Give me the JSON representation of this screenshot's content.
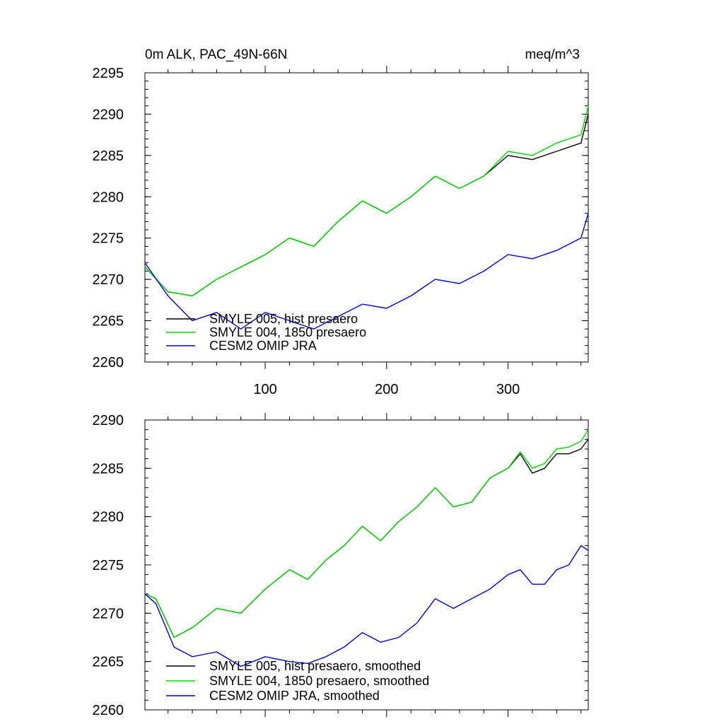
{
  "figure": {
    "title_left": "0m ALK, PAC_49N-66N",
    "title_right": "meq/m^3"
  },
  "chart_data": [
    {
      "type": "line",
      "title": "0m ALK, PAC_49N-66N",
      "units": "meq/m^3",
      "xlim": [
        1,
        366
      ],
      "ylim": [
        2260,
        2295
      ],
      "x_ticks": [
        100,
        200,
        300
      ],
      "y_ticks": [
        2260,
        2265,
        2270,
        2275,
        2280,
        2285,
        2290,
        2295
      ],
      "grid": false,
      "legend_position": "lower-left",
      "series": [
        {
          "name": "SMYLE 005, hist presaero",
          "color": "#000000",
          "x": [
            1,
            20,
            40,
            60,
            80,
            100,
            120,
            140,
            160,
            180,
            200,
            220,
            240,
            260,
            280,
            300,
            320,
            340,
            360,
            366
          ],
          "values": [
            2271.5,
            2268.5,
            2268.0,
            2270.0,
            2271.5,
            2273.0,
            2275.0,
            2274.0,
            2277.0,
            2279.5,
            2278.0,
            2280.0,
            2282.5,
            2281.0,
            2282.5,
            2285.0,
            2284.5,
            2285.5,
            2286.5,
            2290.0
          ]
        },
        {
          "name": "SMYLE 004, 1850 presaero",
          "color": "#00dd00",
          "x": [
            1,
            20,
            40,
            60,
            80,
            100,
            120,
            140,
            160,
            180,
            200,
            220,
            240,
            260,
            280,
            300,
            320,
            340,
            360,
            366
          ],
          "values": [
            2271.5,
            2268.5,
            2268.0,
            2270.0,
            2271.5,
            2273.0,
            2275.0,
            2274.0,
            2277.0,
            2279.5,
            2278.0,
            2280.0,
            2282.5,
            2281.0,
            2282.5,
            2285.5,
            2285.0,
            2286.5,
            2287.5,
            2291.0
          ]
        },
        {
          "name": "CESM2 OMIP JRA",
          "color": "#0000dd",
          "x": [
            1,
            20,
            40,
            60,
            80,
            100,
            120,
            140,
            160,
            180,
            200,
            220,
            240,
            260,
            280,
            300,
            320,
            340,
            360,
            366
          ],
          "values": [
            2272.0,
            2268.0,
            2265.0,
            2266.0,
            2264.0,
            2266.0,
            2265.0,
            2264.0,
            2265.5,
            2267.0,
            2266.5,
            2268.0,
            2270.0,
            2269.5,
            2271.0,
            2273.0,
            2272.5,
            2273.5,
            2275.0,
            2278.0
          ]
        }
      ]
    },
    {
      "type": "line",
      "xlim": [
        1,
        366
      ],
      "ylim": [
        2260,
        2290
      ],
      "x_ticks": [
        100,
        200,
        300
      ],
      "y_ticks": [
        2260,
        2265,
        2270,
        2275,
        2280,
        2285,
        2290
      ],
      "grid": false,
      "legend_position": "lower-left",
      "series": [
        {
          "name": "SMYLE 005, hist presaero, smoothed",
          "color": "#000000",
          "x": [
            1,
            10,
            25,
            40,
            60,
            80,
            100,
            120,
            135,
            150,
            165,
            180,
            195,
            210,
            225,
            240,
            255,
            270,
            285,
            300,
            310,
            320,
            330,
            340,
            350,
            360,
            366
          ],
          "values": [
            2272.0,
            2271.5,
            2267.5,
            2268.5,
            2270.5,
            2270.0,
            2272.5,
            2274.5,
            2273.5,
            2275.5,
            2277.0,
            2279.0,
            2277.5,
            2279.5,
            2281.0,
            2283.0,
            2281.0,
            2281.5,
            2284.0,
            2285.0,
            2286.5,
            2284.5,
            2285.0,
            2286.5,
            2286.5,
            2287.0,
            2288.0
          ]
        },
        {
          "name": "SMYLE 004, 1850 presaero, smoothed",
          "color": "#00dd00",
          "x": [
            1,
            10,
            25,
            40,
            60,
            80,
            100,
            120,
            135,
            150,
            165,
            180,
            195,
            210,
            225,
            240,
            255,
            270,
            285,
            300,
            310,
            320,
            330,
            340,
            350,
            360,
            366
          ],
          "values": [
            2272.0,
            2271.5,
            2267.5,
            2268.5,
            2270.5,
            2270.0,
            2272.5,
            2274.5,
            2273.5,
            2275.5,
            2277.0,
            2279.0,
            2277.5,
            2279.5,
            2281.0,
            2283.0,
            2281.0,
            2281.5,
            2284.0,
            2285.0,
            2286.7,
            2285.0,
            2285.5,
            2287.0,
            2287.2,
            2287.8,
            2289.0
          ]
        },
        {
          "name": "CESM2 OMIP JRA, smoothed",
          "color": "#0000dd",
          "x": [
            1,
            10,
            25,
            40,
            60,
            80,
            100,
            120,
            135,
            150,
            165,
            180,
            195,
            210,
            225,
            240,
            255,
            270,
            285,
            300,
            310,
            320,
            330,
            340,
            350,
            360,
            366
          ],
          "values": [
            2272.0,
            2271.0,
            2266.5,
            2265.5,
            2266.0,
            2264.5,
            2265.5,
            2265.0,
            2264.8,
            2265.5,
            2266.5,
            2268.0,
            2267.0,
            2267.5,
            2269.0,
            2271.5,
            2270.5,
            2271.5,
            2272.5,
            2274.0,
            2274.5,
            2273.0,
            2273.0,
            2274.5,
            2275.0,
            2277.0,
            2276.5
          ]
        }
      ]
    }
  ]
}
